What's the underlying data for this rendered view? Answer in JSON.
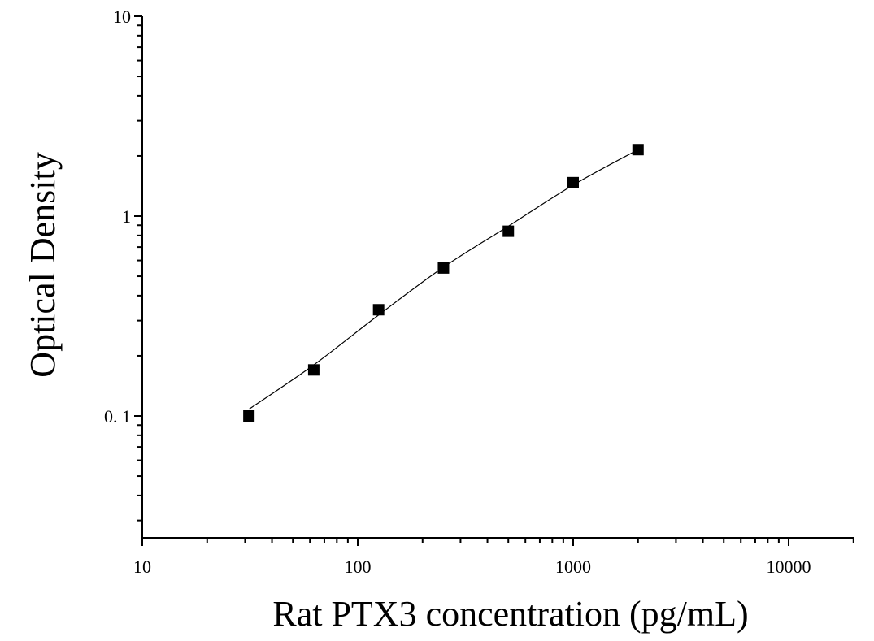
{
  "chart_data": {
    "type": "scatter",
    "title": "",
    "xlabel": "Rat PTX3 concentration (pg/mL)",
    "ylabel": "Optical Density",
    "x_scale": "log",
    "y_scale": "log",
    "xlim": [
      10,
      20000
    ],
    "ylim": [
      0.025,
      10
    ],
    "x_ticks": [
      {
        "value": 10,
        "label": "10"
      },
      {
        "value": 100,
        "label": "100"
      },
      {
        "value": 1000,
        "label": "1000"
      },
      {
        "value": 10000,
        "label": "10000"
      }
    ],
    "y_ticks": [
      {
        "value": 0.1,
        "label": "0. 1"
      },
      {
        "value": 1,
        "label": "1"
      },
      {
        "value": 10,
        "label": "10"
      }
    ],
    "grid": false,
    "legend": "none",
    "series": [
      {
        "x": [
          31.25,
          62.5,
          125,
          250,
          500,
          1000,
          2000
        ],
        "y": [
          0.1,
          0.17,
          0.34,
          0.55,
          0.84,
          1.47,
          2.15
        ]
      }
    ],
    "fit_curve": {
      "x": [
        31.25,
        62.5,
        125,
        250,
        500,
        1000,
        2000
      ],
      "y": [
        0.108,
        0.18,
        0.32,
        0.555,
        0.89,
        1.43,
        2.15
      ]
    },
    "colors": {
      "marker": "#000000",
      "line": "#000000",
      "axis": "#000000"
    }
  }
}
